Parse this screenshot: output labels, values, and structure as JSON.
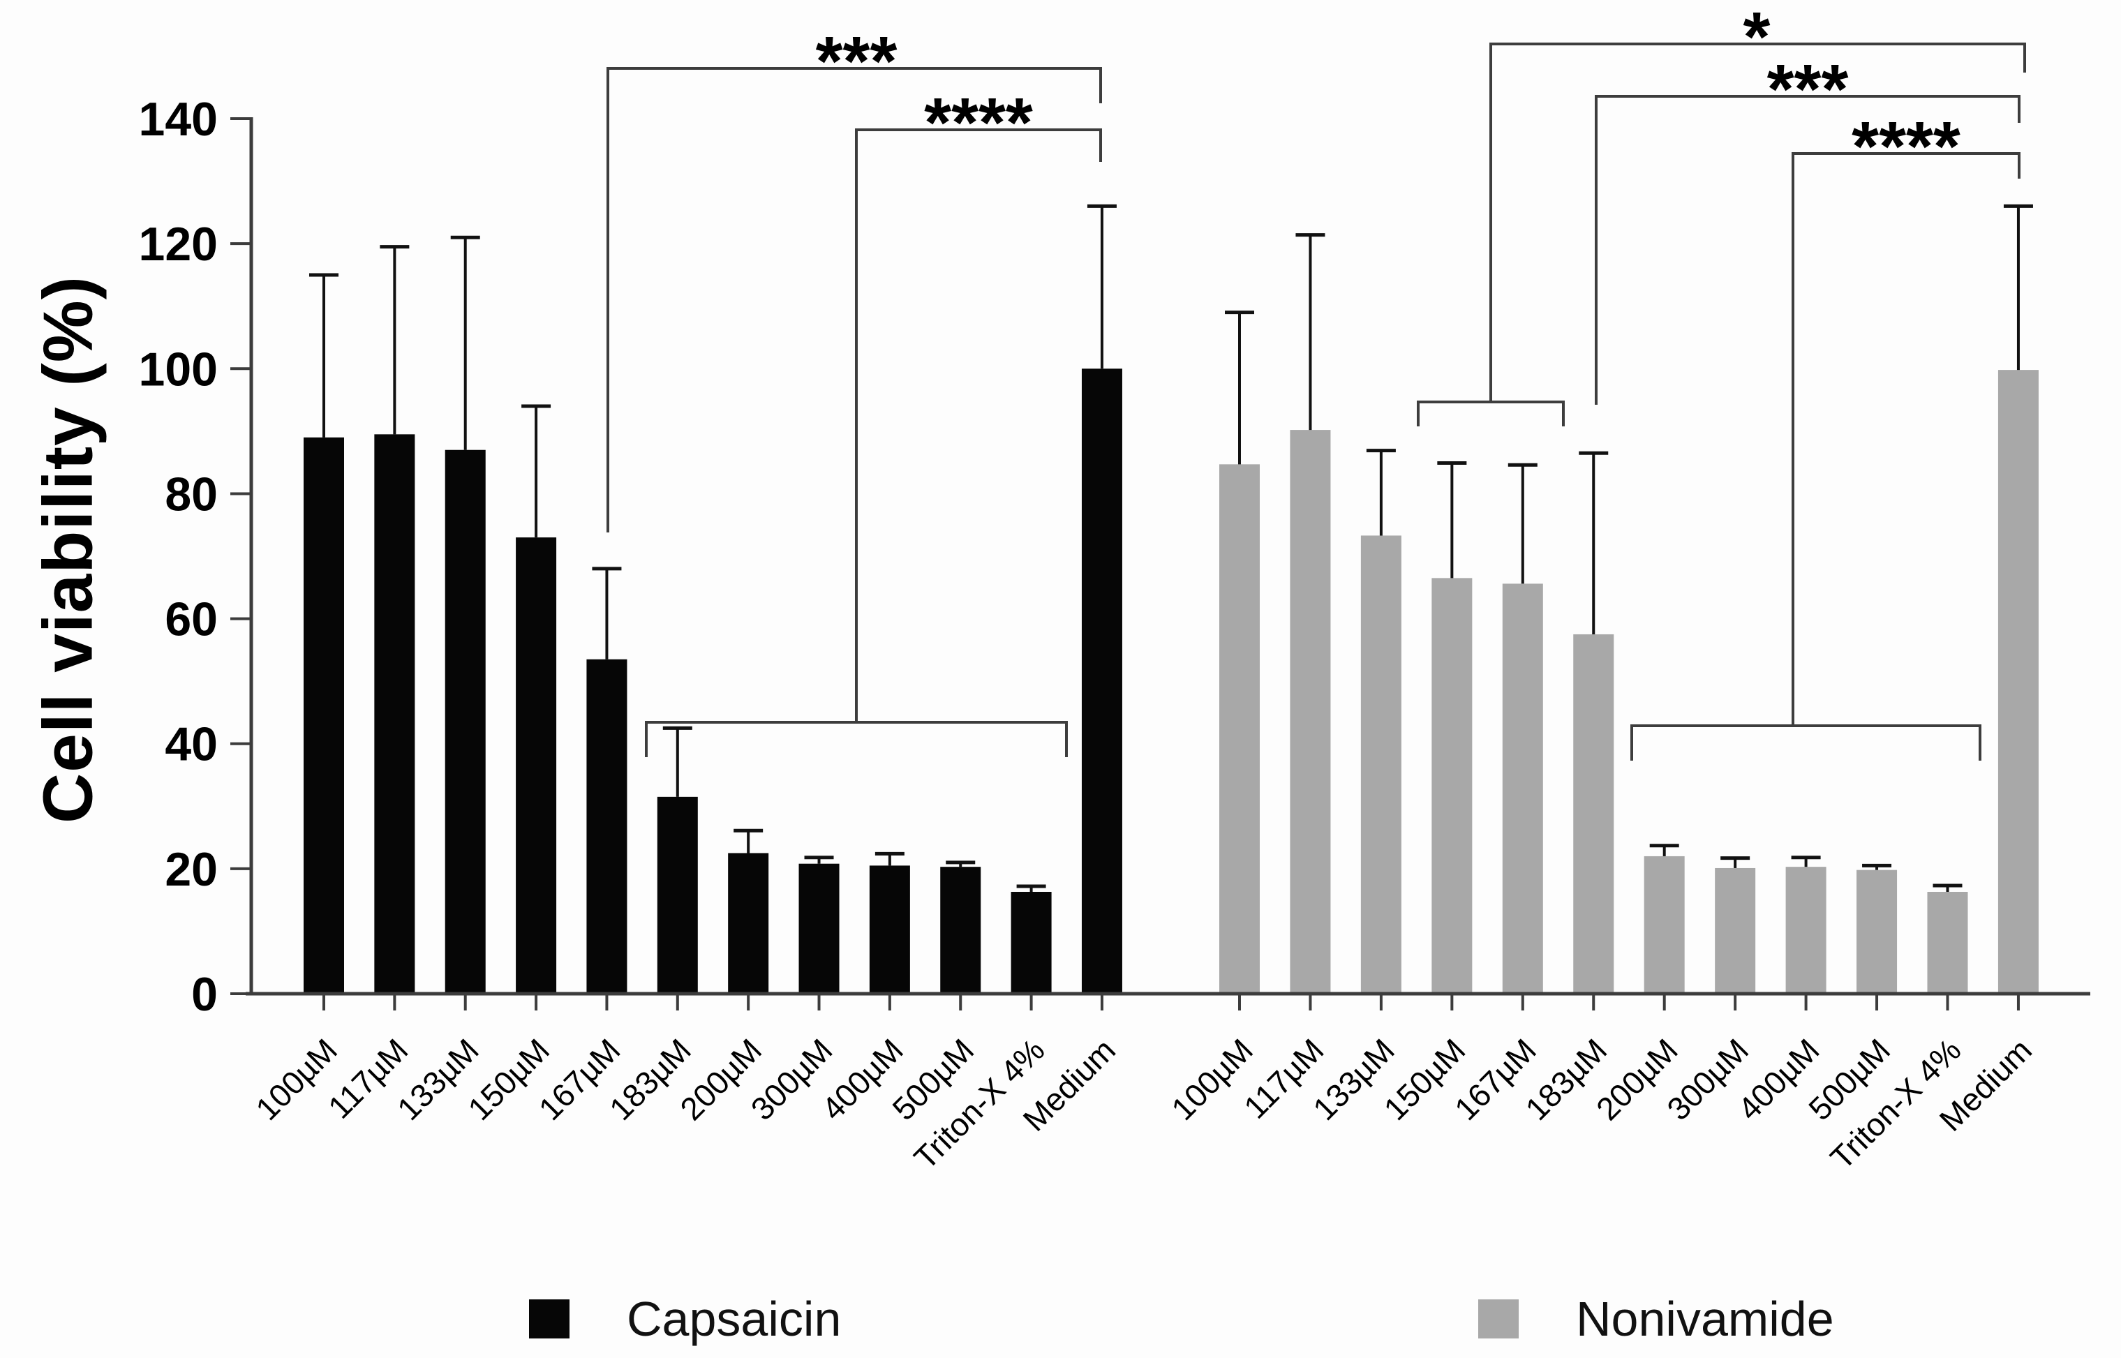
{
  "chart_data": {
    "type": "bar",
    "title": "",
    "ylabel": "Cell viability (%)",
    "xlabel": "",
    "ylim": [
      0,
      140
    ],
    "yticks": [
      0,
      20,
      40,
      60,
      80,
      100,
      120,
      140
    ],
    "grid": "off",
    "legend_position": "bottom",
    "categories": [
      "100µM",
      "117µM",
      "133µM",
      "150µM",
      "167µM",
      "183µM",
      "200µM",
      "300µM",
      "400µM",
      "500µM",
      "Triton-X 4%",
      "Medium"
    ],
    "series": [
      {
        "name": "Capsaicin",
        "color": "#060606",
        "values": [
          89,
          89.5,
          87,
          73,
          53.5,
          31.5,
          22.5,
          20.8,
          20.5,
          20.3,
          16.3,
          100
        ],
        "errors_up": [
          26,
          30,
          34,
          21,
          14.5,
          11,
          3.6,
          1.0,
          1.9,
          0.7,
          0.9,
          26
        ]
      },
      {
        "name": "Nonivamide",
        "color": "#a8a8a8",
        "values": [
          84.7,
          90.2,
          73.3,
          66.5,
          65.6,
          57.5,
          22.0,
          20.1,
          20.3,
          19.8,
          16.3,
          99.8
        ],
        "errors_up": [
          24.3,
          31.2,
          13.6,
          18.4,
          19.0,
          29.0,
          1.7,
          1.6,
          1.5,
          0.7,
          1.0,
          26.2
        ]
      }
    ],
    "significance": [
      {
        "group": "Capsaicin",
        "label": "***",
        "compares": [
          "167µM",
          "Medium"
        ],
        "label_x": 1227,
        "label_y": 122,
        "lines": [
          [
            [
              871,
              763
            ],
            [
              871,
              98
            ],
            [
              1577,
              98
            ],
            [
              1577,
              148
            ]
          ]
        ]
      },
      {
        "group": "Capsaicin",
        "label": "****",
        "compares": [
          "183µM–Triton-X 4%",
          "Medium"
        ],
        "label_x": 1402,
        "label_y": 210,
        "lines": [
          [
            [
              926,
              1085
            ],
            [
              926,
              1035
            ],
            [
              1528,
              1035
            ],
            [
              1528,
              1085
            ]
          ],
          [
            [
              1227,
              1035
            ],
            [
              1227,
              186
            ],
            [
              1577,
              186
            ],
            [
              1577,
              232
            ]
          ]
        ]
      },
      {
        "group": "Nonivamide",
        "label": "*",
        "compares": [
          "150µM–167µM",
          "Medium"
        ],
        "label_x": 2517,
        "label_y": 87,
        "lines": [
          [
            [
              2032,
              611
            ],
            [
              2032,
              576
            ],
            [
              2240,
              576
            ],
            [
              2240,
              611
            ]
          ],
          [
            [
              2136,
              576
            ],
            [
              2136,
              63
            ],
            [
              2901,
              63
            ],
            [
              2901,
              104
            ]
          ]
        ]
      },
      {
        "group": "Nonivamide",
        "label": "***",
        "compares": [
          "183µM",
          "Medium"
        ],
        "label_x": 2590,
        "label_y": 162,
        "lines": [
          [
            [
              2287,
              580
            ],
            [
              2287,
              138
            ],
            [
              2893,
              138
            ],
            [
              2893,
              176
            ]
          ]
        ]
      },
      {
        "group": "Nonivamide",
        "label": "****",
        "compares": [
          "200µM–Triton-X 4%",
          "Medium"
        ],
        "label_x": 2731,
        "label_y": 244,
        "lines": [
          [
            [
              2338,
              1090
            ],
            [
              2338,
              1040
            ],
            [
              2837,
              1040
            ],
            [
              2837,
              1090
            ]
          ],
          [
            [
              2569,
              1040
            ],
            [
              2569,
              220
            ],
            [
              2893,
              220
            ],
            [
              2893,
              256
            ]
          ]
        ]
      }
    ],
    "axis_color": "#3c3c3c",
    "error_bar_color": "#111111",
    "annotation_color": "#3d3d3d",
    "text_color": "#000000"
  },
  "legend": {
    "items": [
      {
        "label": "Capsaicin",
        "color": "#060606"
      },
      {
        "label": "Nonivamide",
        "color": "#a8a8a8"
      }
    ]
  }
}
